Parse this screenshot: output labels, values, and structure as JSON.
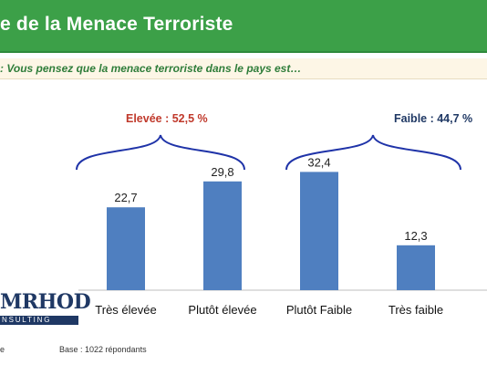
{
  "banner": {
    "title": "e de la Menace Terroriste",
    "color": "#3ca048"
  },
  "question": ":  Vous pensez que la menace terroriste dans le pays est…",
  "groups": {
    "high_label": "Elevée : 52,5 %",
    "low_label": "Faible : 44,7 %",
    "high_color": "#c0392b",
    "low_color": "#1f3864",
    "brace_color": "#1f33a8"
  },
  "logo": {
    "text": "MRHOD",
    "sub": "NSULTING"
  },
  "footer": {
    "left": "e",
    "base": "Base : 1022 répondants"
  },
  "chart_data": {
    "type": "bar",
    "categories": [
      "Très élevée",
      "Plutôt élevée",
      "Plutôt Faible",
      "Très faible"
    ],
    "values": [
      22.7,
      29.8,
      32.4,
      12.3
    ],
    "value_labels": [
      "22,7",
      "29,8",
      "32,4",
      "12,3"
    ],
    "bar_color": "#4f7fc0",
    "ylim": [
      0,
      40
    ],
    "grid": false
  }
}
